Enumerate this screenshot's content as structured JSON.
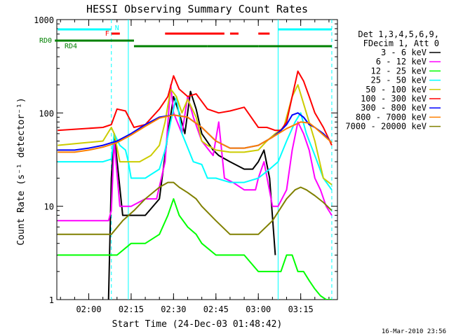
{
  "chart_data": {
    "type": "line",
    "title": "HESSI Observing Summary Count Rates",
    "xlabel": "Start Time (24-Dec-03 01:48:42)",
    "ylabel": "Count Rate (s⁻¹ detector⁻¹)",
    "yscale": "log",
    "ylim": [
      1,
      1000
    ],
    "xlim": [
      "01:48:42",
      "03:28:00"
    ],
    "x_ticks": [
      "02:00",
      "02:15",
      "02:30",
      "02:45",
      "03:00",
      "03:15"
    ],
    "y_ticks": [
      "1",
      "10",
      "100",
      "1000"
    ],
    "legend_title": [
      "Det 1,3,4,5,6,9,",
      "FDecim 1, Att 0"
    ],
    "legend_position": "right",
    "timestamp": "16-Mar-2010 23:56",
    "vertical_markers": [
      "02:08",
      "02:14",
      "03:07",
      "03:26"
    ],
    "flag_bars": [
      {
        "label": "N",
        "color": "#00ffff",
        "segments": [
          [
            "01:49",
            "02:08"
          ],
          [
            "03:07",
            "03:26"
          ]
        ]
      },
      {
        "label": "F",
        "color": "#ff0000",
        "segments": [
          [
            "02:08",
            "02:11"
          ],
          [
            "02:27",
            "02:48"
          ],
          [
            "02:50",
            "02:53"
          ],
          [
            "03:00",
            "03:04"
          ]
        ]
      },
      {
        "label": "RD0",
        "color": "#008000",
        "segments": [
          [
            "01:48",
            "02:16"
          ]
        ]
      },
      {
        "label": "RD4",
        "color": "#008000",
        "segments": [
          [
            "02:16",
            "02:42"
          ],
          [
            "02:42",
            "03:00"
          ],
          [
            "03:00",
            "03:26"
          ]
        ]
      }
    ],
    "series": [
      {
        "name": "3 - 6 keV",
        "color": "#000000",
        "x": [
          "02:07",
          "02:08",
          "02:09",
          "02:12",
          "02:20",
          "02:25",
          "02:28",
          "02:30",
          "02:32",
          "02:34",
          "02:36",
          "02:38",
          "02:40",
          "02:44",
          "02:46",
          "02:50",
          "02:55",
          "02:58",
          "03:00",
          "03:02",
          "03:04",
          "03:06"
        ],
        "values": [
          1,
          20,
          60,
          8,
          8,
          12,
          60,
          150,
          100,
          60,
          170,
          110,
          60,
          40,
          35,
          30,
          25,
          25,
          30,
          40,
          20,
          3
        ]
      },
      {
        "name": "6 - 12 keV",
        "color": "#ff00ff",
        "x": [
          "01:49",
          "02:07",
          "02:08",
          "02:09",
          "02:11",
          "02:15",
          "02:20",
          "02:24",
          "02:27",
          "02:29",
          "02:30",
          "02:33",
          "02:35",
          "02:37",
          "02:40",
          "02:44",
          "02:46",
          "02:48",
          "02:51",
          "02:55",
          "02:59",
          "03:00",
          "03:02",
          "03:05",
          "03:07",
          "03:10",
          "03:12",
          "03:14",
          "03:16",
          "03:18",
          "03:20",
          "03:22",
          "03:24",
          "03:26"
        ],
        "values": [
          7,
          7,
          9,
          50,
          10,
          10,
          12,
          12,
          30,
          200,
          100,
          60,
          150,
          90,
          50,
          35,
          80,
          20,
          18,
          15,
          15,
          20,
          30,
          10,
          10,
          15,
          40,
          80,
          60,
          40,
          20,
          15,
          10,
          8
        ]
      },
      {
        "name": "12 - 25 keV",
        "color": "#00ff00",
        "x": [
          "01:49",
          "02:05",
          "02:10",
          "02:15",
          "02:20",
          "02:25",
          "02:28",
          "02:30",
          "02:32",
          "02:35",
          "02:38",
          "02:40",
          "02:45",
          "02:50",
          "02:55",
          "03:00",
          "03:05",
          "03:08",
          "03:10",
          "03:12",
          "03:14",
          "03:16",
          "03:18",
          "03:20",
          "03:22",
          "03:24",
          "03:26"
        ],
        "values": [
          3,
          3,
          3,
          4,
          4,
          5,
          8,
          12,
          8,
          6,
          5,
          4,
          3,
          3,
          3,
          2,
          2,
          2,
          3,
          3,
          2,
          2,
          1.6,
          1.3,
          1.1,
          1,
          1
        ]
      },
      {
        "name": "25 - 50 keV",
        "color": "#00ffff",
        "x": [
          "01:49",
          "02:05",
          "02:08",
          "02:09",
          "02:11",
          "02:13",
          "02:14",
          "02:15",
          "02:20",
          "02:25",
          "02:27",
          "02:29",
          "02:31",
          "02:33",
          "02:37",
          "02:40",
          "02:42",
          "02:45",
          "02:50",
          "02:55",
          "03:00",
          "03:04",
          "03:07",
          "03:10",
          "03:13",
          "03:15",
          "03:17",
          "03:20",
          "03:23",
          "03:26"
        ],
        "values": [
          30,
          30,
          32,
          60,
          45,
          40,
          30,
          20,
          20,
          25,
          40,
          80,
          150,
          60,
          30,
          28,
          20,
          20,
          18,
          18,
          20,
          25,
          30,
          50,
          80,
          100,
          60,
          35,
          20,
          15
        ]
      },
      {
        "name": "50 - 100 keV",
        "color": "#cccc00",
        "x": [
          "01:49",
          "02:05",
          "02:08",
          "02:09",
          "02:11",
          "02:14",
          "02:18",
          "02:22",
          "02:25",
          "02:27",
          "02:29",
          "02:31",
          "02:33",
          "02:35",
          "02:38",
          "02:40",
          "02:42",
          "02:45",
          "02:50",
          "02:55",
          "03:00",
          "03:03",
          "03:06",
          "03:09",
          "03:12",
          "03:14",
          "03:17",
          "03:20",
          "03:23",
          "03:26"
        ],
        "values": [
          45,
          50,
          70,
          60,
          30,
          30,
          30,
          35,
          45,
          80,
          180,
          150,
          100,
          140,
          90,
          50,
          45,
          40,
          38,
          38,
          40,
          50,
          60,
          70,
          150,
          200,
          100,
          50,
          20,
          17
        ]
      },
      {
        "name": "100 - 300 keV",
        "color": "#ff0000",
        "x": [
          "01:49",
          "02:05",
          "02:08",
          "02:10",
          "02:13",
          "02:16",
          "02:20",
          "02:25",
          "02:28",
          "02:30",
          "02:32",
          "02:35",
          "02:38",
          "02:42",
          "02:46",
          "02:50",
          "02:55",
          "03:00",
          "03:03",
          "03:06",
          "03:08",
          "03:10",
          "03:12",
          "03:14",
          "03:16",
          "03:18",
          "03:20",
          "03:23",
          "03:26"
        ],
        "values": [
          65,
          70,
          75,
          110,
          105,
          70,
          75,
          110,
          150,
          250,
          180,
          150,
          160,
          110,
          100,
          105,
          115,
          70,
          70,
          65,
          65,
          80,
          150,
          280,
          220,
          150,
          100,
          70,
          45
        ]
      },
      {
        "name": "300 - 800 keV",
        "color": "#0000ff",
        "x": [
          "01:49",
          "01:55",
          "02:00",
          "02:05",
          "02:10",
          "02:15",
          "02:20",
          "02:25",
          "02:30",
          "02:35",
          "02:40",
          "02:45",
          "02:50",
          "02:55",
          "03:00",
          "03:05",
          "03:08",
          "03:10",
          "03:12",
          "03:14",
          "03:16",
          "03:18",
          "03:20",
          "03:23",
          "03:26"
        ],
        "values": [
          40,
          40,
          42,
          45,
          50,
          60,
          75,
          90,
          95,
          90,
          70,
          50,
          42,
          42,
          45,
          55,
          65,
          75,
          95,
          100,
          90,
          75,
          70,
          60,
          48
        ]
      },
      {
        "name": "800 - 7000 keV",
        "color": "#ff8000",
        "x": [
          "01:49",
          "01:55",
          "02:00",
          "02:05",
          "02:10",
          "02:15",
          "02:20",
          "02:25",
          "02:30",
          "02:35",
          "02:40",
          "02:45",
          "02:50",
          "02:55",
          "03:00",
          "03:05",
          "03:10",
          "03:15",
          "03:18",
          "03:20",
          "03:23",
          "03:26"
        ],
        "values": [
          38,
          38,
          40,
          43,
          48,
          58,
          72,
          88,
          95,
          90,
          70,
          50,
          42,
          42,
          45,
          55,
          68,
          80,
          78,
          70,
          58,
          48
        ]
      },
      {
        "name": "7000 - 20000 keV",
        "color": "#808000",
        "x": [
          "01:49",
          "01:55",
          "02:00",
          "02:05",
          "02:08",
          "02:12",
          "02:16",
          "02:20",
          "02:25",
          "02:28",
          "02:30",
          "02:32",
          "02:35",
          "02:38",
          "02:40",
          "02:45",
          "02:50",
          "02:55",
          "03:00",
          "03:05",
          "03:10",
          "03:13",
          "03:15",
          "03:17",
          "03:20",
          "03:23",
          "03:26"
        ],
        "values": [
          5,
          5,
          5,
          5,
          5,
          7,
          9,
          12,
          16,
          18,
          18,
          16,
          14,
          12,
          10,
          7,
          5,
          5,
          5,
          7,
          12,
          15,
          16,
          15,
          13,
          11,
          9
        ]
      }
    ]
  }
}
